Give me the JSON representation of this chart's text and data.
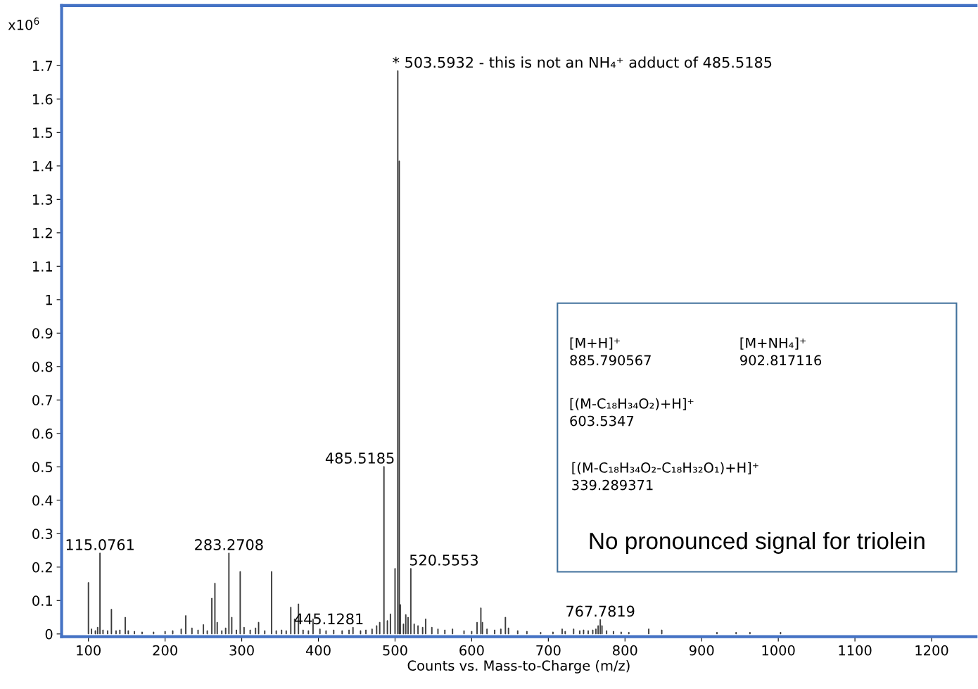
{
  "chart_data": {
    "type": "bar",
    "xlabel": "Counts vs. Mass-to-Charge (m/z)",
    "ylabel": "x10$^{6}$",
    "x": [
      100,
      104,
      109,
      112,
      115.0761,
      119,
      125,
      130,
      136,
      141,
      148,
      152,
      160,
      170,
      185,
      200,
      210,
      221,
      227,
      235,
      243,
      250,
      255,
      261,
      265,
      268,
      274,
      279,
      283.2708,
      287,
      293,
      298,
      303,
      311,
      318,
      322,
      330,
      339,
      345,
      352,
      358,
      364,
      369,
      374,
      380,
      387,
      393,
      402,
      410,
      420,
      431,
      440,
      445.1281,
      455,
      462,
      470,
      476,
      480,
      485.5185,
      490,
      494,
      500,
      503.5932,
      505.5,
      507,
      511,
      514,
      517,
      520.5553,
      525,
      530,
      536,
      540,
      548,
      556,
      565,
      575,
      590,
      600,
      607,
      612,
      614,
      620,
      630,
      638,
      644,
      648,
      660,
      672,
      690,
      706,
      718,
      722,
      733,
      741,
      746,
      752,
      758,
      762,
      765,
      767.7819,
      770,
      776,
      785,
      795,
      805,
      831,
      848,
      920,
      945,
      963,
      1003
    ],
    "values": [
      0.154,
      0.015,
      0.01,
      0.02,
      0.242,
      0.012,
      0.01,
      0.074,
      0.01,
      0.012,
      0.05,
      0.01,
      0.008,
      0.006,
      0.006,
      0.008,
      0.01,
      0.015,
      0.055,
      0.018,
      0.012,
      0.028,
      0.01,
      0.107,
      0.152,
      0.035,
      0.01,
      0.018,
      0.242,
      0.05,
      0.012,
      0.187,
      0.02,
      0.012,
      0.018,
      0.035,
      0.01,
      0.187,
      0.01,
      0.012,
      0.01,
      0.08,
      0.045,
      0.09,
      0.012,
      0.01,
      0.045,
      0.015,
      0.01,
      0.012,
      0.01,
      0.012,
      0.02,
      0.01,
      0.012,
      0.015,
      0.025,
      0.035,
      0.501,
      0.04,
      0.06,
      0.196,
      1.685,
      1.415,
      0.088,
      0.03,
      0.058,
      0.05,
      0.196,
      0.03,
      0.025,
      0.02,
      0.045,
      0.02,
      0.015,
      0.012,
      0.015,
      0.01,
      0.008,
      0.035,
      0.078,
      0.035,
      0.015,
      0.012,
      0.015,
      0.05,
      0.018,
      0.01,
      0.008,
      0.005,
      0.006,
      0.015,
      0.008,
      0.015,
      0.01,
      0.012,
      0.01,
      0.012,
      0.015,
      0.025,
      0.043,
      0.025,
      0.01,
      0.008,
      0.006,
      0.005,
      0.015,
      0.012,
      0.005,
      0.005,
      0.005,
      0.005
    ],
    "color": "#333333",
    "xlim": [
      65,
      1258
    ],
    "ylim": [
      -0.008,
      1.88
    ],
    "xticks": [
      100,
      200,
      300,
      400,
      500,
      600,
      700,
      800,
      900,
      1000,
      1100,
      1200
    ],
    "yticks": [
      0,
      0.1,
      0.2,
      0.3,
      0.4,
      0.5,
      0.6,
      0.7,
      0.8,
      0.9,
      1,
      1.1,
      1.2,
      1.3,
      1.4,
      1.5,
      1.6,
      1.7
    ],
    "grid": false,
    "legend": false,
    "annotations": [
      {
        "text": "* 503.5932 - this is not an NH₄⁺ adduct of 485.5185",
        "x": 503.5932,
        "y": 1.685
      },
      {
        "text": "485.5185",
        "x": 485.5185,
        "y": 0.501
      },
      {
        "text": "115.0761",
        "x": 115.0761,
        "y": 0.242
      },
      {
        "text": "283.2708",
        "x": 283.2708,
        "y": 0.242
      },
      {
        "text": "520.5553",
        "x": 520.5553,
        "y": 0.196
      },
      {
        "text": "445.1281",
        "x": 445.1281,
        "y": 0.02
      },
      {
        "text": "767.7819",
        "x": 767.7819,
        "y": 0.043
      },
      "[M+H]⁺\n885.790567",
      "[M+NH₄]⁺\n902.817116",
      "[(M-C₁₈H₃₄O₂)+H]⁺\n603.5347",
      "[(M-C₁₈H₃₄O₂-C₁₈H₃₂O₁)+H]⁺\n339.289371",
      "No pronounced signal for triolein"
    ]
  }
}
